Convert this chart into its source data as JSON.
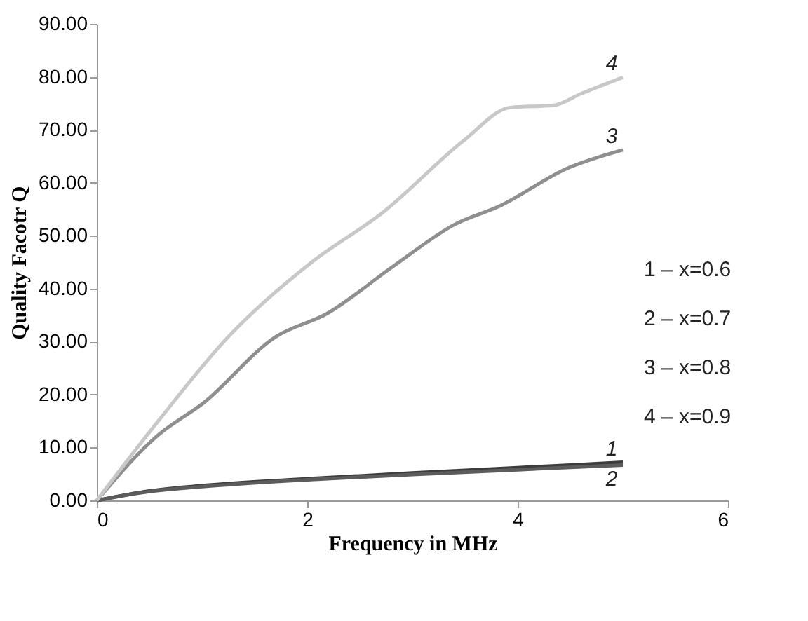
{
  "chart_data": {
    "type": "line",
    "xlabel": "Frequency in MHz",
    "ylabel": "Quality Facotr Q",
    "xlim": [
      0,
      6
    ],
    "xticks": [
      {
        "value": 0,
        "label": "0"
      },
      {
        "value": 2,
        "label": "2"
      },
      {
        "value": 4,
        "label": "4"
      },
      {
        "value": 6,
        "label": "6"
      }
    ],
    "ylim": [
      0,
      90
    ],
    "yticks": [
      {
        "value": 0,
        "label": "0.00"
      },
      {
        "value": 10,
        "label": "10.00"
      },
      {
        "value": 20,
        "label": "20.00"
      },
      {
        "value": 30,
        "label": "30.00"
      },
      {
        "value": 40,
        "label": "40.00"
      },
      {
        "value": 50,
        "label": "50.00"
      },
      {
        "value": 60,
        "label": "60.00"
      },
      {
        "value": 70,
        "label": "70.00"
      },
      {
        "value": 80,
        "label": "80.00"
      },
      {
        "value": 90,
        "label": "90.00"
      }
    ],
    "grid": false,
    "marker": "none",
    "line_style": "solid",
    "series": [
      {
        "name": "1",
        "color": "#3c3c3c",
        "x": [
          0,
          0.5,
          1,
          2,
          3,
          4,
          5
        ],
        "values": [
          0,
          1.8,
          2.8,
          4.1,
          5.2,
          6.2,
          7.2
        ]
      },
      {
        "name": "2",
        "color": "#5c5c5c",
        "x": [
          0,
          0.5,
          1,
          2,
          3,
          4,
          5
        ],
        "values": [
          0,
          1.7,
          2.6,
          3.9,
          4.9,
          5.8,
          6.7
        ]
      },
      {
        "name": "3",
        "color": "#8f8f8f",
        "x": [
          0,
          0.58,
          1.02,
          1.7,
          2.19,
          2.81,
          3.4,
          3.84,
          4.47,
          5
        ],
        "values": [
          0,
          12.3,
          18.5,
          30.9,
          35.3,
          44.1,
          52.1,
          55.7,
          62.7,
          66.2
        ]
      },
      {
        "name": "4",
        "color": "#c8c8c8",
        "x": [
          0,
          0.58,
          1.25,
          2.05,
          2.72,
          3.49,
          3.93,
          4.34,
          4.6,
          5
        ],
        "values": [
          0,
          14.9,
          30.9,
          45.1,
          54.4,
          68.0,
          74.2,
          74.6,
          76.8,
          79.9
        ]
      }
    ],
    "annotations": [
      "1 –  x=0.6",
      "2 –  x=0.7",
      "3 –  x=0.8",
      "4 – x=0.9"
    ]
  }
}
